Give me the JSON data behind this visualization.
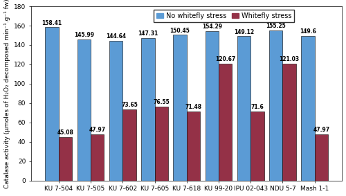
{
  "categories": [
    "KU 7-504",
    "KU 7-505",
    "KU 7-602",
    "KU 7-605",
    "KU 7-618",
    "KU 99-20",
    "IPU 02-043",
    "NDU 5-7",
    "Mash 1-1"
  ],
  "no_stress": [
    158.41,
    145.99,
    144.64,
    147.31,
    150.45,
    154.29,
    149.12,
    155.25,
    149.6
  ],
  "whitefly_stress": [
    45.08,
    47.97,
    73.65,
    76.55,
    71.48,
    120.67,
    71.6,
    121.03,
    47.97
  ],
  "no_stress_color": "#5B9BD5",
  "whitefly_stress_color": "#943147",
  "ylabel": "Catalase activity (µmoles of H₂O₂ decomposed min⁻¹.g⁻¹ fw)",
  "ylim": [
    0,
    180
  ],
  "yticks": [
    0,
    20,
    40,
    60,
    80,
    100,
    120,
    140,
    160,
    180
  ],
  "legend_no_stress": "No whitefly stress",
  "legend_whitefly": "Whitefly stress",
  "bar_width": 0.42,
  "label_fontsize": 6.5,
  "tick_fontsize": 6.5,
  "value_fontsize": 5.5,
  "legend_fontsize": 7
}
